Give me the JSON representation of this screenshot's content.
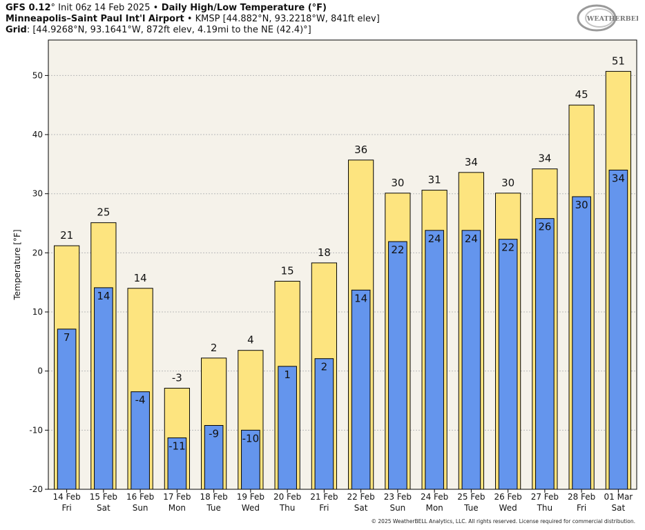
{
  "header": {
    "model": "GFS 0.12",
    "deg1": "°",
    "init": " Init 06z 14 Feb 2025 ",
    "bullet1": "•",
    "product": " Daily High/Low Temperature (°F)",
    "station": "Minneapolis–Saint Paul Int'l Airport",
    "bullet2": " • ",
    "station_info": "KMSP [44.882°N, 93.2218°W, 841ft elev]",
    "grid_label": "Grid",
    "grid_info": ": [44.9268°N, 93.1641°W, 872ft elev, 4.19mi to the NE (42.4)°]"
  },
  "logo": {
    "text": "WEATHERBELL"
  },
  "footer": "© 2025 WeatherBELL Analytics, LLC. All rights reserved. License required for commercial distribution.",
  "chart_data": {
    "type": "bar",
    "title": "Daily High/Low Temperature (°F)",
    "ylabel": "Temperature [°F]",
    "ylim": [
      -20,
      56
    ],
    "yticks": [
      -20,
      -10,
      0,
      10,
      20,
      30,
      40,
      50
    ],
    "grid": true,
    "categories": [
      {
        "date": "14 Feb",
        "day": "Fri"
      },
      {
        "date": "15 Feb",
        "day": "Sat"
      },
      {
        "date": "16 Feb",
        "day": "Sun"
      },
      {
        "date": "17 Feb",
        "day": "Mon"
      },
      {
        "date": "18 Feb",
        "day": "Tue"
      },
      {
        "date": "19 Feb",
        "day": "Wed"
      },
      {
        "date": "20 Feb",
        "day": "Thu"
      },
      {
        "date": "21 Feb",
        "day": "Fri"
      },
      {
        "date": "22 Feb",
        "day": "Sat"
      },
      {
        "date": "23 Feb",
        "day": "Sun"
      },
      {
        "date": "24 Feb",
        "day": "Mon"
      },
      {
        "date": "25 Feb",
        "day": "Tue"
      },
      {
        "date": "26 Feb",
        "day": "Wed"
      },
      {
        "date": "27 Feb",
        "day": "Thu"
      },
      {
        "date": "28 Feb",
        "day": "Fri"
      },
      {
        "date": "01 Mar",
        "day": "Sat"
      }
    ],
    "series": [
      {
        "name": "High",
        "color": "#fde47f",
        "values": [
          21.2,
          25.1,
          14.0,
          -2.9,
          2.2,
          3.5,
          15.2,
          18.3,
          35.7,
          30.1,
          30.6,
          33.6,
          30.1,
          34.2,
          45.0,
          50.7
        ],
        "labels": [
          "21",
          "25",
          "14",
          "-3",
          "2",
          "4",
          "15",
          "18",
          "36",
          "30",
          "31",
          "34",
          "30",
          "34",
          "45",
          "51"
        ]
      },
      {
        "name": "Low",
        "color": "#6495ed",
        "values": [
          7.1,
          14.1,
          -3.5,
          -11.3,
          -9.2,
          -10.0,
          0.8,
          2.1,
          13.7,
          21.9,
          23.8,
          23.8,
          22.3,
          25.8,
          29.5,
          34.0
        ],
        "labels": [
          "7",
          "14",
          "-4",
          "-11",
          "-9",
          "-10",
          "1",
          "2",
          "14",
          "22",
          "24",
          "24",
          "22",
          "26",
          "30",
          "34"
        ]
      }
    ],
    "background": "#f5f2ea"
  }
}
